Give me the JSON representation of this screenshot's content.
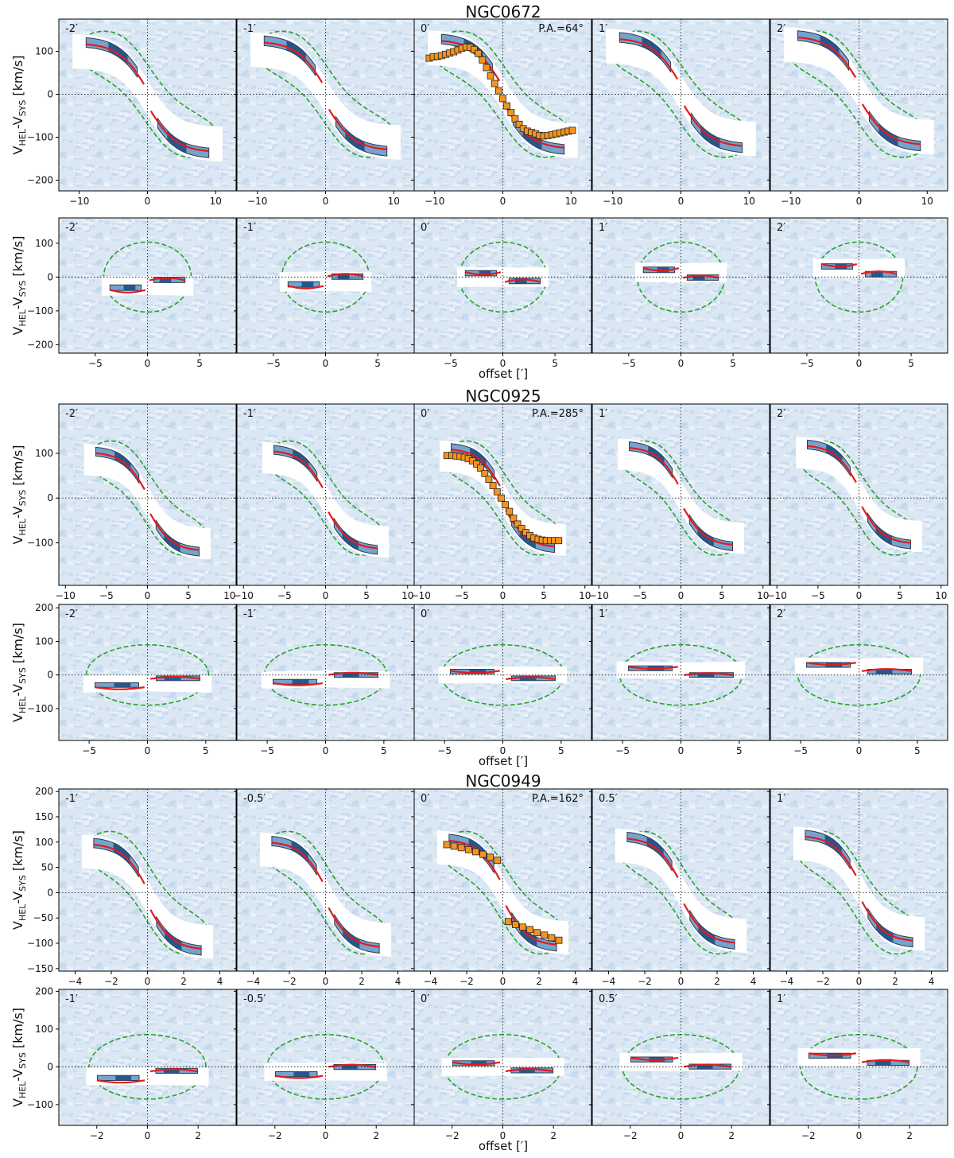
{
  "figure": {
    "xlabel": "offset [′]",
    "ylabel": "Vₕₑₗ-Vₛᵧₛ [km/s]",
    "ylabel_main": "V",
    "ylabel_sub1": "HEL",
    "ylabel_mid": "-V",
    "ylabel_sub2": "SYS",
    "ylabel_tail": " [km/s]",
    "colors": {
      "background": "#dbe8f4",
      "emission_dark": "#1f4e85",
      "emission_mid": "#5b93c6",
      "model_curve": "#e41a1c",
      "envelope": "#2ca02c",
      "rotation_points": "#f5941d",
      "contour": "#0d1b2a"
    }
  },
  "chart_data": [
    {
      "type": "heatmap",
      "galaxy": "NGC0672",
      "rows": [
        {
          "axis": "major",
          "xticks": [
            -10,
            0,
            10
          ],
          "yticks": [
            100,
            0,
            -100,
            -200
          ],
          "xlim": [
            -13,
            13
          ],
          "ylim": [
            -225,
            175
          ],
          "panel_labels": [
            "-2′",
            "-1′",
            "0′",
            "1′",
            "2′"
          ],
          "pa_label": "P.A.=64°",
          "vmax": 115,
          "rmax": 10,
          "rotation_curve": {
            "offset": [
              -10.8,
              -10.2,
              -9.6,
              -9.0,
              -8.4,
              -7.8,
              -7.2,
              -6.6,
              -6.0,
              -5.4,
              -4.8,
              -4.2,
              -3.6,
              -3.0,
              -2.4,
              -1.8,
              -1.2,
              -0.6,
              0.0,
              0.6,
              1.2,
              1.8,
              2.4,
              3.0,
              3.6,
              4.2,
              4.8,
              5.4,
              6.0,
              6.6,
              7.2,
              7.8,
              8.4,
              9.0,
              9.6,
              10.2
            ],
            "velocity": [
              84,
              87,
              88,
              90,
              93,
              96,
              99,
              103,
              107,
              110,
              109,
              104,
              95,
              80,
              62,
              43,
              25,
              8,
              -10,
              -27,
              -43,
              -57,
              -70,
              -80,
              -86,
              -89,
              -92,
              -96,
              -97,
              -96,
              -94,
              -92,
              -90,
              -88,
              -86,
              -84
            ]
          }
        },
        {
          "axis": "minor",
          "xticks": [
            -5,
            0,
            5
          ],
          "yticks": [
            100,
            0,
            -100,
            -200
          ],
          "xlim": [
            -8.5,
            8.5
          ],
          "ylim": [
            -225,
            175
          ],
          "panel_labels": [
            "-2′",
            "-1′",
            "0′",
            "1′",
            "2′"
          ],
          "vmax": 115,
          "rmax": 4
        }
      ]
    },
    {
      "type": "heatmap",
      "galaxy": "NGC0925",
      "rows": [
        {
          "axis": "major",
          "xticks": [
            -10,
            -5,
            0,
            5,
            10
          ],
          "yticks": [
            100,
            0,
            -100
          ],
          "xlim": [
            -10.8,
            10.8
          ],
          "ylim": [
            -195,
            210
          ],
          "panel_labels": [
            "-2′",
            "-1′",
            "0′",
            "1′",
            "2′"
          ],
          "pa_label": "P.A.=285°",
          "vmax": 100,
          "rmax": 7,
          "rotation_curve": {
            "offset": [
              -6.8,
              -6.2,
              -5.7,
              -5.2,
              -4.7,
              -4.2,
              -3.7,
              -3.2,
              -2.7,
              -2.2,
              -1.7,
              -1.2,
              -0.7,
              -0.2,
              0.3,
              0.8,
              1.3,
              1.8,
              2.3,
              2.8,
              3.3,
              3.8,
              4.3,
              4.8,
              5.3,
              5.8,
              6.3,
              6.8
            ],
            "velocity": [
              95,
              95,
              94,
              93,
              91,
              88,
              83,
              76,
              67,
              55,
              42,
              28,
              14,
              0,
              -15,
              -30,
              -45,
              -58,
              -68,
              -77,
              -84,
              -89,
              -92,
              -94,
              -95,
              -95,
              -95,
              -95
            ]
          }
        },
        {
          "axis": "minor",
          "xticks": [
            -5,
            0,
            5
          ],
          "yticks": [
            200,
            100,
            0,
            -100
          ],
          "xlim": [
            -7.6,
            7.6
          ],
          "ylim": [
            -195,
            210
          ],
          "panel_labels": [
            "-2′",
            "-1′",
            "0′",
            "1′",
            "2′"
          ],
          "vmax": 100,
          "rmax": 5
        }
      ]
    },
    {
      "type": "heatmap",
      "galaxy": "NGC0949",
      "rows": [
        {
          "axis": "major",
          "xticks": [
            -4,
            -2,
            0,
            2,
            4
          ],
          "yticks": [
            200,
            150,
            100,
            50,
            0,
            -50,
            -100,
            -150
          ],
          "xlim": [
            -4.9,
            4.9
          ],
          "ylim": [
            -155,
            205
          ],
          "panel_labels": [
            "-1′",
            "-0.5′",
            "0′",
            "0.5′",
            "1′"
          ],
          "pa_label": "P.A.=162°",
          "vmax": 95,
          "rmax": 3.3,
          "rotation_curve": {
            "offset": [
              -3.1,
              -2.7,
              -2.3,
              -1.9,
              -1.5,
              -1.1,
              -0.7,
              -0.3,
              0.3,
              0.7,
              1.1,
              1.5,
              1.9,
              2.3,
              2.7,
              3.1
            ],
            "velocity": [
              95,
              92,
              89,
              85,
              81,
              76,
              70,
              64,
              -57,
              -63,
              -68,
              -73,
              -79,
              -84,
              -89,
              -94
            ]
          }
        },
        {
          "axis": "minor",
          "xticks": [
            -2,
            0,
            2
          ],
          "yticks": [
            200,
            100,
            0,
            -100
          ],
          "xlim": [
            -3.5,
            3.5
          ],
          "ylim": [
            -155,
            205
          ],
          "panel_labels": [
            "-1′",
            "-0.5′",
            "0′",
            "0.5′",
            "1′"
          ],
          "vmax": 95,
          "rmax": 2.2
        }
      ]
    }
  ]
}
